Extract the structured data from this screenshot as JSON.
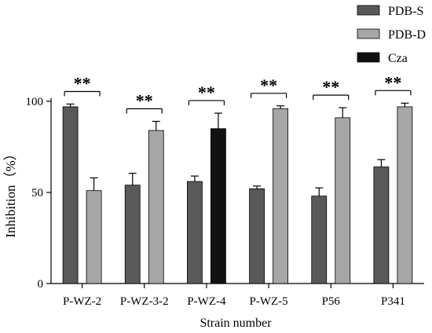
{
  "chart_data": {
    "type": "bar",
    "xlabel": "Strain number",
    "ylabel": "Inhibition（%）",
    "ylim": [
      0,
      100
    ],
    "yticks": [
      0,
      50,
      100
    ],
    "grid": false,
    "legend_position": "top-right",
    "categories": [
      "P-WZ-2",
      "P-WZ-3-2",
      "P-WZ-4",
      "P-WZ-5",
      "P56",
      "P341"
    ],
    "series": [
      {
        "name": "PDB-S",
        "color": "#595959",
        "values": [
          97,
          54,
          56,
          52,
          48,
          64
        ],
        "errors": [
          1.5,
          6.5,
          3,
          1.5,
          4.5,
          4
        ]
      }
    ],
    "bars2": [
      {
        "series": "PDB-D",
        "value": 51,
        "error": 7
      },
      {
        "series": "PDB-D",
        "value": 84,
        "error": 5
      },
      {
        "series": "Cza",
        "value": 85,
        "error": 8.5
      },
      {
        "series": "PDB-D",
        "value": 96,
        "error": 1.5
      },
      {
        "series": "PDB-D",
        "value": 91,
        "error": 5.5
      },
      {
        "series": "PDB-D",
        "value": 97,
        "error": 2
      }
    ],
    "legend": [
      {
        "name": "PDB-S",
        "color": "#595959"
      },
      {
        "name": "PDB-D",
        "color": "#a6a6a6"
      },
      {
        "name": "Cza",
        "color": "#111111"
      }
    ],
    "significance": [
      "**",
      "**",
      "**",
      "**",
      "**",
      "**"
    ]
  }
}
